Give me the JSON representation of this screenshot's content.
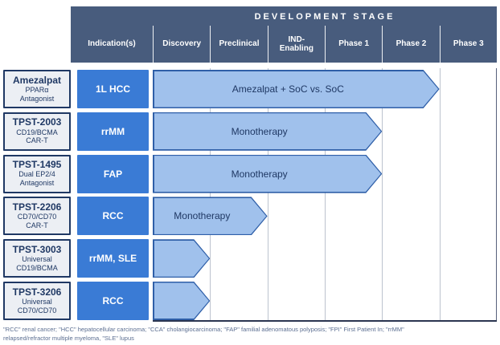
{
  "colors": {
    "header_bg": "#485C7D",
    "indication_bg": "#3A7BD5",
    "arrow_fill": "#A0C1EC",
    "arrow_border": "#2F5FA8",
    "box_border": "#1F3864"
  },
  "chart_data": {
    "type": "table",
    "title": "DEVELOPMENT STAGE",
    "indication_column_label": "Indication(s)",
    "stage_columns": [
      "Discovery",
      "Preclinical",
      "IND-\nEnabling",
      "Phase 1",
      "Phase 2",
      "Phase 3"
    ],
    "rows": [
      {
        "program_name": "Amezalpat",
        "program_subtitle": "PPARα\nAntagonist",
        "indication": "1L HCC",
        "arrow_label": "Amezalpat + SoC vs. SoC",
        "stages_spanned": 5,
        "furthest_stage": "Phase 2"
      },
      {
        "program_name": "TPST-2003",
        "program_subtitle": "CD19/BCMA\nCAR-T",
        "indication": "rrMM",
        "arrow_label": "Monotherapy",
        "stages_spanned": 4,
        "furthest_stage": "Phase 1"
      },
      {
        "program_name": "TPST-1495",
        "program_subtitle": "Dual EP2/4\nAntagonist",
        "indication": "FAP",
        "arrow_label": "Monotherapy",
        "stages_spanned": 4,
        "furthest_stage": "Phase 1"
      },
      {
        "program_name": "TPST-2206",
        "program_subtitle": "CD70/CD70\nCAR-T",
        "indication": "RCC",
        "arrow_label": "Monotherapy",
        "stages_spanned": 2,
        "furthest_stage": "Preclinical"
      },
      {
        "program_name": "TPST-3003",
        "program_subtitle": "Universal\nCD19/BCMA",
        "indication": "rrMM, SLE",
        "arrow_label": "",
        "stages_spanned": 1,
        "furthest_stage": "Discovery"
      },
      {
        "program_name": "TPST-3206",
        "program_subtitle": "Universal\nCD70/CD70",
        "indication": "RCC",
        "arrow_label": "",
        "stages_spanned": 1,
        "furthest_stage": "Discovery"
      }
    ]
  },
  "footnote": "\"RCC\" renal cancer; \"HCC\" hepatocellular carcinoma; \"CCA\" cholangiocarcinoma; \"FAP\" familial adenomatous polyposis; \"FPI\" First Patient In; \"rrMM\"\nrelapsed/refractor multiple myeloma, \"SLE\" lupus"
}
